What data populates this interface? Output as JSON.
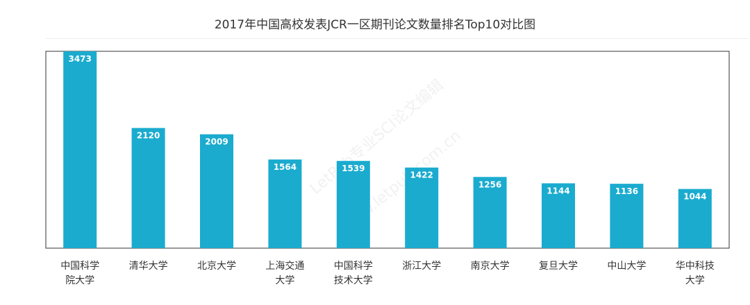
{
  "chart_data": {
    "type": "bar",
    "title": "2017年中国高校发表JCR一区期刊论文数量排名Top10对比图",
    "categories": [
      [
        "中国科学",
        "院大学"
      ],
      [
        "清华大学"
      ],
      [
        "北京大学"
      ],
      [
        "上海交通",
        "大学"
      ],
      [
        "中国科学",
        "技术大学"
      ],
      [
        "浙江大学"
      ],
      [
        "南京大学"
      ],
      [
        "复旦大学"
      ],
      [
        "中山大学"
      ],
      [
        "华中科技",
        "大学"
      ]
    ],
    "values": [
      3473,
      2120,
      2009,
      1564,
      1539,
      1422,
      1256,
      1144,
      1136,
      1044
    ],
    "data_labels": [
      "3473",
      "2120",
      "2009",
      "1564",
      "1539",
      "1422",
      "1256",
      "1144",
      "1136",
      "1044"
    ],
    "ylim": [
      0,
      3473
    ],
    "grid": false,
    "colors": {
      "bar": "#1aabcf",
      "label": "#ffffff",
      "frame": "#333333"
    }
  },
  "watermark": {
    "text": "LetPub专业SCI论文编辑",
    "url": "www.letpub.com.cn"
  }
}
